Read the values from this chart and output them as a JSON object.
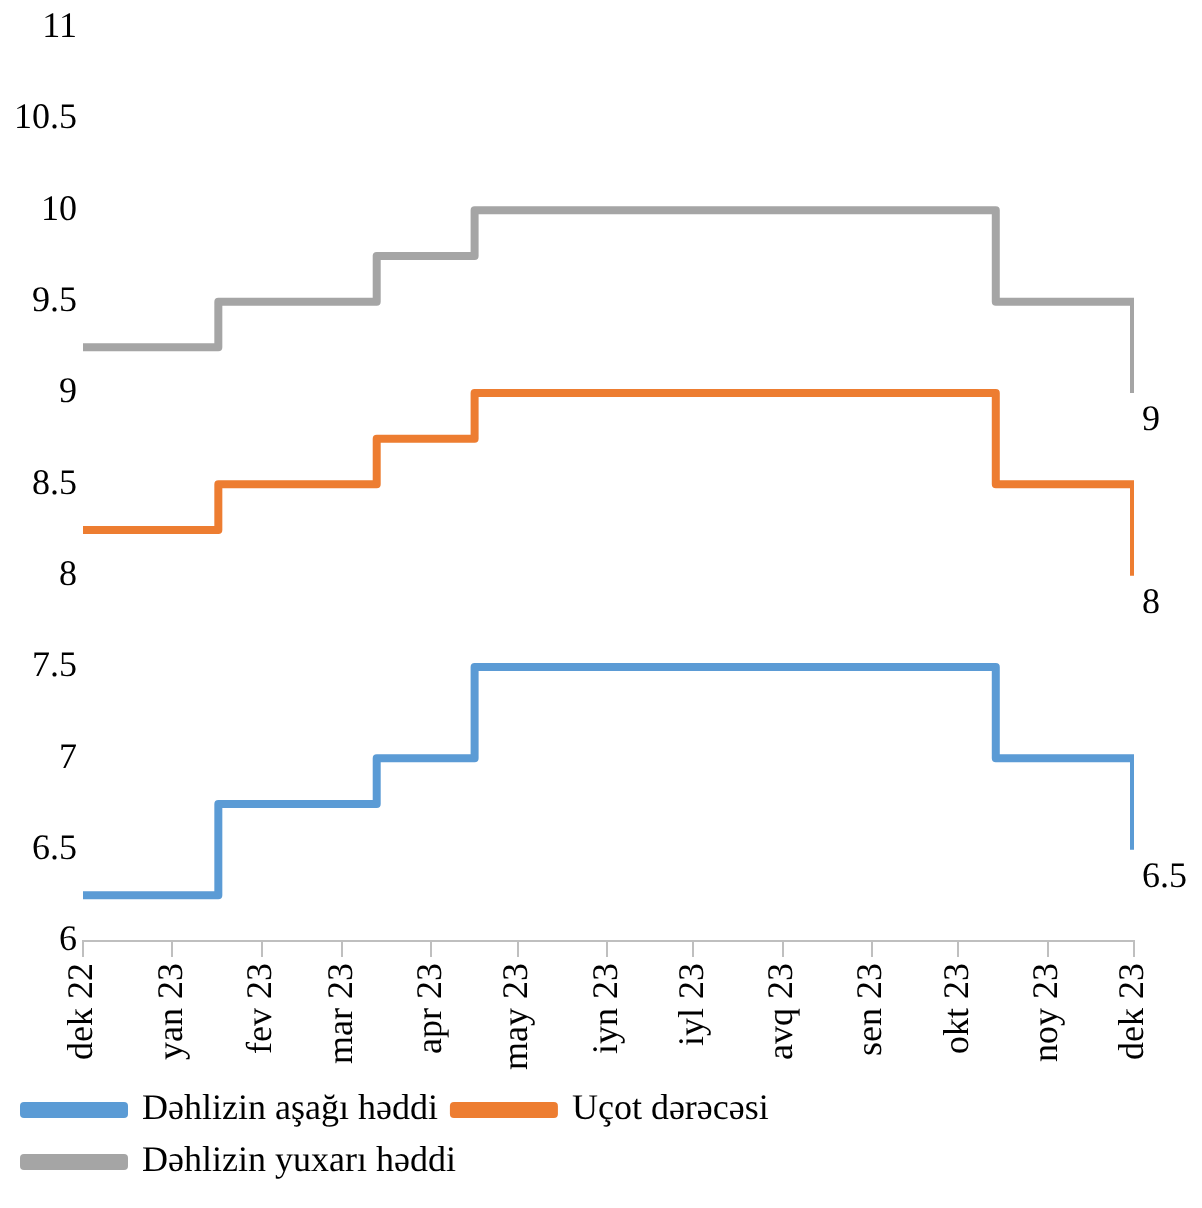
{
  "chart_data": {
    "type": "step",
    "x": [
      "2022-12-01",
      "2023-01-17",
      "2023-03-13",
      "2023-04-16",
      "2023-10-14",
      "2023-12-01"
    ],
    "series": [
      {
        "name": "Dəhlizin aşağı həddi",
        "color": "#5b9bd5",
        "values": [
          6.25,
          6.75,
          7,
          7.5,
          7,
          6.5
        ],
        "value_labels": [
          null,
          null,
          null,
          null,
          null,
          "6.5"
        ]
      },
      {
        "name": "Uçot dərəcəsi",
        "color": "#ed7d31",
        "values": [
          8.25,
          8.5,
          8.75,
          9,
          8.5,
          8
        ],
        "value_labels": [
          null,
          null,
          null,
          null,
          null,
          "8"
        ]
      },
      {
        "name": "Dəhlizin yuxarı həddi",
        "color": "#a5a5a5",
        "values": [
          9.25,
          9.5,
          9.75,
          10,
          9.5,
          9
        ],
        "value_labels": [
          null,
          null,
          null,
          null,
          null,
          "9"
        ]
      }
    ],
    "xlim": [
      "2022-12-01",
      "2023-12-01"
    ],
    "xticks": [
      {
        "value": "2022-12-01",
        "label": "dek 22"
      },
      {
        "value": "2023-01-01",
        "label": "yan 23"
      },
      {
        "value": "2023-02-01",
        "label": "fev 23"
      },
      {
        "value": "2023-03-01",
        "label": "mar 23"
      },
      {
        "value": "2023-04-01",
        "label": "apr 23"
      },
      {
        "value": "2023-05-01",
        "label": "may 23"
      },
      {
        "value": "2023-06-01",
        "label": "iyn 23"
      },
      {
        "value": "2023-07-01",
        "label": "iyl 23"
      },
      {
        "value": "2023-08-01",
        "label": "avq 23"
      },
      {
        "value": "2023-09-01",
        "label": "sen 23"
      },
      {
        "value": "2023-10-01",
        "label": "okt 23"
      },
      {
        "value": "2023-11-01",
        "label": "noy 23"
      },
      {
        "value": "2023-12-01",
        "label": "dek 23"
      }
    ],
    "ylim": [
      6,
      11
    ],
    "yticks": [
      6,
      6.5,
      7,
      7.5,
      8,
      8.5,
      9,
      9.5,
      10,
      10.5,
      11
    ],
    "grid": false,
    "legend": "bottom",
    "marker": "none",
    "line_style": "solid"
  }
}
